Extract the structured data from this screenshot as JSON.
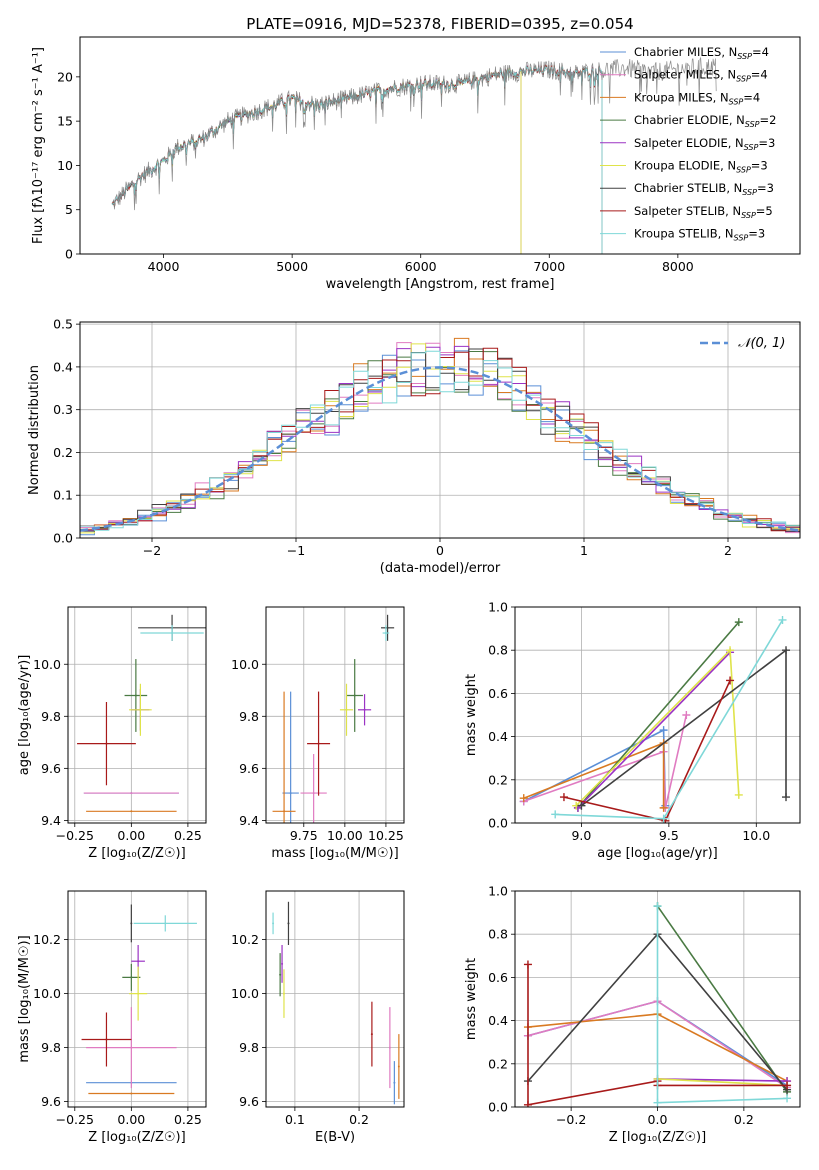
{
  "figure_title": "PLATE=0916, MJD=52378, FIBERID=0395, z=0.054",
  "models": [
    {
      "name": "Chabrier MILES",
      "nssp": "4",
      "color": "#5b8fd6"
    },
    {
      "name": "Salpeter MILES",
      "nssp": "4",
      "color": "#e07bc1"
    },
    {
      "name": "Kroupa MILES",
      "nssp": "4",
      "color": "#d97a22"
    },
    {
      "name": "Chabrier ELODIE",
      "nssp": "2",
      "color": "#4a7a43"
    },
    {
      "name": "Salpeter ELODIE",
      "nssp": "3",
      "color": "#9b33c4"
    },
    {
      "name": "Kroupa ELODIE",
      "nssp": "3",
      "color": "#dfe34a"
    },
    {
      "name": "Chabrier STELIB",
      "nssp": "3",
      "color": "#404040"
    },
    {
      "name": "Salpeter STELIB",
      "nssp": "5",
      "color": "#a81a1a"
    },
    {
      "name": "Kroupa STELIB",
      "nssp": "3",
      "color": "#7fd8d8"
    }
  ],
  "chart_data": [
    {
      "id": "spectrum",
      "type": "line",
      "xlabel": "wavelength [Angstrom, rest frame]",
      "ylabel": "Flux [fλ10⁻¹⁷ erg cm⁻² s⁻¹ A⁻¹]",
      "xlim": [
        3350,
        8950
      ],
      "ylim": [
        0,
        24.5
      ],
      "xticks": [
        4000,
        5000,
        6000,
        7000,
        8000
      ],
      "yticks": [
        0,
        5,
        10,
        15,
        20
      ],
      "data_color": "#808080",
      "continuum": [
        {
          "x": 3600,
          "y": 5.5
        },
        {
          "x": 3700,
          "y": 7
        },
        {
          "x": 3800,
          "y": 8.5
        },
        {
          "x": 3900,
          "y": 9.5
        },
        {
          "x": 4000,
          "y": 10.5
        },
        {
          "x": 4100,
          "y": 12
        },
        {
          "x": 4300,
          "y": 13
        },
        {
          "x": 4500,
          "y": 15
        },
        {
          "x": 4700,
          "y": 16
        },
        {
          "x": 5000,
          "y": 17.5
        },
        {
          "x": 5200,
          "y": 16.8
        },
        {
          "x": 5500,
          "y": 17.8
        },
        {
          "x": 5800,
          "y": 18.8
        },
        {
          "x": 6000,
          "y": 19.2
        },
        {
          "x": 6300,
          "y": 19.2
        },
        {
          "x": 6600,
          "y": 20.3
        },
        {
          "x": 6800,
          "y": 20.6
        },
        {
          "x": 7000,
          "y": 20.8
        },
        {
          "x": 7200,
          "y": 20.4
        },
        {
          "x": 7400,
          "y": 20.7
        },
        {
          "x": 7600,
          "y": 21
        },
        {
          "x": 7800,
          "y": 20.5
        },
        {
          "x": 8100,
          "y": 21
        },
        {
          "x": 8300,
          "y": 21.2
        }
      ],
      "model_extent": [
        {
          "model": "Chabrier MILES",
          "x0": 3600,
          "x1": 7410
        },
        {
          "model": "Salpeter MILES",
          "x0": 3600,
          "x1": 7410
        },
        {
          "model": "Kroupa MILES",
          "x0": 3600,
          "x1": 7410
        },
        {
          "model": "Chabrier ELODIE",
          "x0": 3900,
          "x1": 6780
        },
        {
          "model": "Salpeter ELODIE",
          "x0": 3900,
          "x1": 6780
        },
        {
          "model": "Kroupa ELODIE",
          "x0": 3900,
          "x1": 6780
        },
        {
          "model": "Chabrier STELIB",
          "x0": 3600,
          "x1": 7410
        },
        {
          "model": "Salpeter STELIB",
          "x0": 3600,
          "x1": 7410
        },
        {
          "model": "Kroupa STELIB",
          "x0": 3600,
          "x1": 7410
        }
      ]
    },
    {
      "id": "residuals",
      "type": "line",
      "xlabel": "(data-model)/error",
      "ylabel": "Normed distribution",
      "xlim": [
        -2.5,
        2.5
      ],
      "ylim": [
        0,
        0.505
      ],
      "xticks": [
        -2,
        -1,
        0,
        1,
        2
      ],
      "yticks": [
        0.0,
        0.1,
        0.2,
        0.3,
        0.4,
        0.5
      ],
      "legend": "𝒩(0, 1)",
      "gaussian_mean": 0,
      "gaussian_sigma": 1,
      "bin_width": 0.1
    },
    {
      "id": "age-vs-Z",
      "type": "scatter",
      "xlabel": "Z [log₁₀(Z/Z☉)]",
      "ylabel": "age  [log₁₀(age/yr)]",
      "xlim": [
        -0.28,
        0.33
      ],
      "ylim": [
        9.39,
        10.22
      ],
      "xticks": [
        -0.25,
        0.0,
        0.25
      ],
      "yticks": [
        9.4,
        9.6,
        9.8,
        10.0
      ],
      "points": [
        {
          "model": "Chabrier MILES",
          "x": 0.0,
          "y": 9.505,
          "xerr": 0.21,
          "yerr": 0.0
        },
        {
          "model": "Salpeter MILES",
          "x": 0.0,
          "y": 9.505,
          "xerr": 0.21,
          "yerr": 0.0
        },
        {
          "model": "Kroupa MILES",
          "x": 0.0,
          "y": 9.435,
          "xerr": 0.2,
          "yerr": 0.0
        },
        {
          "model": "Chabrier ELODIE",
          "x": 0.02,
          "y": 9.88,
          "xerr": 0.05,
          "yerr": 0.14
        },
        {
          "model": "Salpeter ELODIE",
          "x": 0.04,
          "y": 9.825,
          "xerr": 0.04,
          "yerr": 0.08
        },
        {
          "model": "Kroupa ELODIE",
          "x": 0.04,
          "y": 9.825,
          "xerr": 0.05,
          "yerr": 0.1
        },
        {
          "model": "Chabrier STELIB",
          "x": 0.18,
          "y": 10.14,
          "xerr": 0.15,
          "yerr": 0.05
        },
        {
          "model": "Salpeter STELIB",
          "x": -0.11,
          "y": 9.695,
          "xerr": 0.13,
          "yerr": 0.16
        },
        {
          "model": "Kroupa STELIB",
          "x": 0.18,
          "y": 10.12,
          "xerr": 0.14,
          "yerr": 0.03
        }
      ]
    },
    {
      "id": "age-vs-mass",
      "type": "scatter",
      "xlabel": "mass [log₁₀(M/M☉)]",
      "ylabel": "",
      "xlim": [
        9.52,
        10.36
      ],
      "ylim": [
        9.39,
        10.22
      ],
      "xticks": [
        9.75,
        10.0,
        10.25
      ],
      "yticks": [
        9.4,
        9.6,
        9.8,
        10.0
      ],
      "points": [
        {
          "model": "Chabrier MILES",
          "x": 9.67,
          "y": 9.505,
          "xerr": 0.05,
          "yerr": 0.39
        },
        {
          "model": "Salpeter MILES",
          "x": 9.81,
          "y": 9.505,
          "xerr": 0.08,
          "yerr": 0.15
        },
        {
          "model": "Kroupa MILES",
          "x": 9.63,
          "y": 9.435,
          "xerr": 0.07,
          "yerr": 0.46
        },
        {
          "model": "Chabrier ELODIE",
          "x": 10.06,
          "y": 9.88,
          "xerr": 0.05,
          "yerr": 0.14
        },
        {
          "model": "Salpeter ELODIE",
          "x": 10.12,
          "y": 9.825,
          "xerr": 0.04,
          "yerr": 0.06
        },
        {
          "model": "Kroupa ELODIE",
          "x": 10.01,
          "y": 9.825,
          "xerr": 0.04,
          "yerr": 0.1
        },
        {
          "model": "Chabrier STELIB",
          "x": 10.26,
          "y": 10.14,
          "xerr": 0.04,
          "yerr": 0.05
        },
        {
          "model": "Salpeter STELIB",
          "x": 9.84,
          "y": 9.695,
          "xerr": 0.07,
          "yerr": 0.2
        },
        {
          "model": "Kroupa STELIB",
          "x": 10.25,
          "y": 10.12,
          "xerr": 0.02,
          "yerr": 0.03
        }
      ]
    },
    {
      "id": "mass-weight-vs-age",
      "type": "line",
      "xlabel": "age  [log₁₀(age/yr)]",
      "ylabel": "mass weight",
      "xlim": [
        8.62,
        10.25
      ],
      "ylim": [
        0.0,
        1.0
      ],
      "xticks": [
        9.0,
        9.5,
        10.0
      ],
      "yticks": [
        0.0,
        0.2,
        0.4,
        0.6,
        0.8,
        1.0
      ],
      "series": [
        {
          "model": "Chabrier MILES",
          "points": [
            [
              8.67,
              0.1
            ],
            [
              9.47,
              0.43
            ],
            [
              9.48,
              0.08
            ]
          ]
        },
        {
          "model": "Salpeter MILES",
          "points": [
            [
              8.67,
              0.1
            ],
            [
              9.47,
              0.33
            ],
            [
              9.48,
              0.07
            ],
            [
              9.6,
              0.5
            ]
          ]
        },
        {
          "model": "Kroupa MILES",
          "points": [
            [
              8.67,
              0.115
            ],
            [
              9.47,
              0.37
            ],
            [
              9.47,
              0.07
            ]
          ]
        },
        {
          "model": "Chabrier ELODIE",
          "points": [
            [
              8.98,
              0.07
            ],
            [
              9.9,
              0.93
            ]
          ]
        },
        {
          "model": "Salpeter ELODIE",
          "points": [
            [
              8.98,
              0.07
            ],
            [
              9.85,
              0.79
            ]
          ]
        },
        {
          "model": "Kroupa ELODIE",
          "points": [
            [
              8.97,
              0.08
            ],
            [
              9.85,
              0.8
            ],
            [
              9.9,
              0.13
            ]
          ]
        },
        {
          "model": "Chabrier STELIB",
          "points": [
            [
              9.0,
              0.08
            ],
            [
              10.17,
              0.8
            ],
            [
              10.17,
              0.12
            ]
          ]
        },
        {
          "model": "Salpeter STELIB",
          "points": [
            [
              8.9,
              0.12
            ],
            [
              9.48,
              0.01
            ],
            [
              9.85,
              0.66
            ]
          ]
        },
        {
          "model": "Kroupa STELIB",
          "points": [
            [
              8.85,
              0.04
            ],
            [
              9.47,
              0.02
            ],
            [
              10.15,
              0.94
            ]
          ]
        }
      ]
    },
    {
      "id": "mass-vs-Z",
      "type": "scatter",
      "xlabel": "Z [log₁₀(Z/Z☉)]",
      "ylabel": "mass [log₁₀(M/M☉)]",
      "xlim": [
        -0.28,
        0.33
      ],
      "ylim": [
        9.58,
        10.38
      ],
      "xticks": [
        -0.25,
        0.0,
        0.25
      ],
      "yticks": [
        9.6,
        9.8,
        10.0,
        10.2
      ],
      "points": [
        {
          "model": "Chabrier MILES",
          "x": 0.0,
          "y": 9.67,
          "xerr": 0.2,
          "yerr": 0.0
        },
        {
          "model": "Salpeter MILES",
          "x": 0.0,
          "y": 9.8,
          "xerr": 0.2,
          "yerr": 0.15
        },
        {
          "model": "Kroupa MILES",
          "x": 0.0,
          "y": 9.63,
          "xerr": 0.19,
          "yerr": 0.0
        },
        {
          "model": "Chabrier ELODIE",
          "x": 0.0,
          "y": 10.06,
          "xerr": 0.04,
          "yerr": 0.05
        },
        {
          "model": "Salpeter ELODIE",
          "x": 0.03,
          "y": 10.12,
          "xerr": 0.03,
          "yerr": 0.06
        },
        {
          "model": "Kroupa ELODIE",
          "x": 0.03,
          "y": 10.0,
          "xerr": 0.04,
          "yerr": 0.1
        },
        {
          "model": "Chabrier STELIB",
          "x": 0.0,
          "y": 10.26,
          "xerr": 0.0,
          "yerr": 0.07
        },
        {
          "model": "Salpeter STELIB",
          "x": -0.11,
          "y": 9.83,
          "xerr": 0.11,
          "yerr": 0.1
        },
        {
          "model": "Kroupa STELIB",
          "x": 0.15,
          "y": 10.26,
          "xerr": 0.14,
          "yerr": 0.03
        }
      ]
    },
    {
      "id": "mass-vs-EBV",
      "type": "scatter",
      "xlabel": "E(B-V)",
      "ylabel": "",
      "xlim": [
        0.055,
        0.27
      ],
      "ylim": [
        9.58,
        10.38
      ],
      "xticks": [
        0.1,
        0.2
      ],
      "yticks": [
        9.6,
        9.8,
        10.0,
        10.2
      ],
      "points": [
        {
          "model": "Chabrier MILES",
          "x": 0.255,
          "y": 9.67,
          "xerr": 0.0,
          "yerr": 0.08
        },
        {
          "model": "Salpeter MILES",
          "x": 0.248,
          "y": 9.8,
          "xerr": 0.0,
          "yerr": 0.15
        },
        {
          "model": "Kroupa MILES",
          "x": 0.262,
          "y": 9.73,
          "xerr": 0.0,
          "yerr": 0.12
        },
        {
          "model": "Chabrier ELODIE",
          "x": 0.077,
          "y": 10.07,
          "xerr": 0.0,
          "yerr": 0.08
        },
        {
          "model": "Salpeter ELODIE",
          "x": 0.08,
          "y": 10.11,
          "xerr": 0.0,
          "yerr": 0.07
        },
        {
          "model": "Kroupa ELODIE",
          "x": 0.083,
          "y": 10.0,
          "xerr": 0.0,
          "yerr": 0.09
        },
        {
          "model": "Chabrier STELIB",
          "x": 0.09,
          "y": 10.26,
          "xerr": 0.0,
          "yerr": 0.08
        },
        {
          "model": "Salpeter STELIB",
          "x": 0.22,
          "y": 9.85,
          "xerr": 0.0,
          "yerr": 0.12
        },
        {
          "model": "Kroupa STELIB",
          "x": 0.066,
          "y": 10.26,
          "xerr": 0.0,
          "yerr": 0.04
        }
      ]
    },
    {
      "id": "mass-weight-vs-Z",
      "type": "line",
      "xlabel": "Z [log₁₀(Z/Z☉)]",
      "ylabel": "mass weight",
      "xlim": [
        -0.33,
        0.33
      ],
      "ylim": [
        0.0,
        1.0
      ],
      "xticks": [
        -0.2,
        0.0,
        0.2
      ],
      "yticks": [
        0.0,
        0.2,
        0.4,
        0.6,
        0.8,
        1.0
      ],
      "series": [
        {
          "model": "Chabrier MILES",
          "points": [
            [
              -0.3,
              0.33
            ],
            [
              0.0,
              0.49
            ],
            [
              0.3,
              0.1
            ]
          ]
        },
        {
          "model": "Salpeter MILES",
          "points": [
            [
              -0.3,
              0.33
            ],
            [
              0.0,
              0.49
            ],
            [
              0.3,
              0.09
            ]
          ]
        },
        {
          "model": "Kroupa MILES",
          "points": [
            [
              -0.3,
              0.37
            ],
            [
              0.0,
              0.43
            ],
            [
              0.3,
              0.12
            ]
          ]
        },
        {
          "model": "Chabrier ELODIE",
          "points": [
            [
              0.0,
              0.93
            ],
            [
              0.3,
              0.07
            ]
          ]
        },
        {
          "model": "Salpeter ELODIE",
          "points": [
            [
              0.0,
              0.13
            ],
            [
              0.3,
              0.12
            ]
          ]
        },
        {
          "model": "Kroupa ELODIE",
          "points": [
            [
              0.0,
              0.13
            ],
            [
              0.3,
              0.1
            ]
          ]
        },
        {
          "model": "Chabrier STELIB",
          "points": [
            [
              -0.3,
              0.12
            ],
            [
              0.0,
              0.8
            ],
            [
              0.3,
              0.08
            ]
          ]
        },
        {
          "model": "Salpeter STELIB",
          "points": [
            [
              -0.3,
              0.66
            ],
            [
              -0.3,
              0.01
            ],
            [
              0.0,
              0.12
            ],
            [
              0.0,
              0.1
            ],
            [
              0.3,
              0.1
            ]
          ]
        },
        {
          "model": "Kroupa STELIB",
          "points": [
            [
              0.0,
              0.93
            ],
            [
              0.0,
              0.02
            ],
            [
              0.3,
              0.04
            ]
          ]
        }
      ]
    }
  ]
}
